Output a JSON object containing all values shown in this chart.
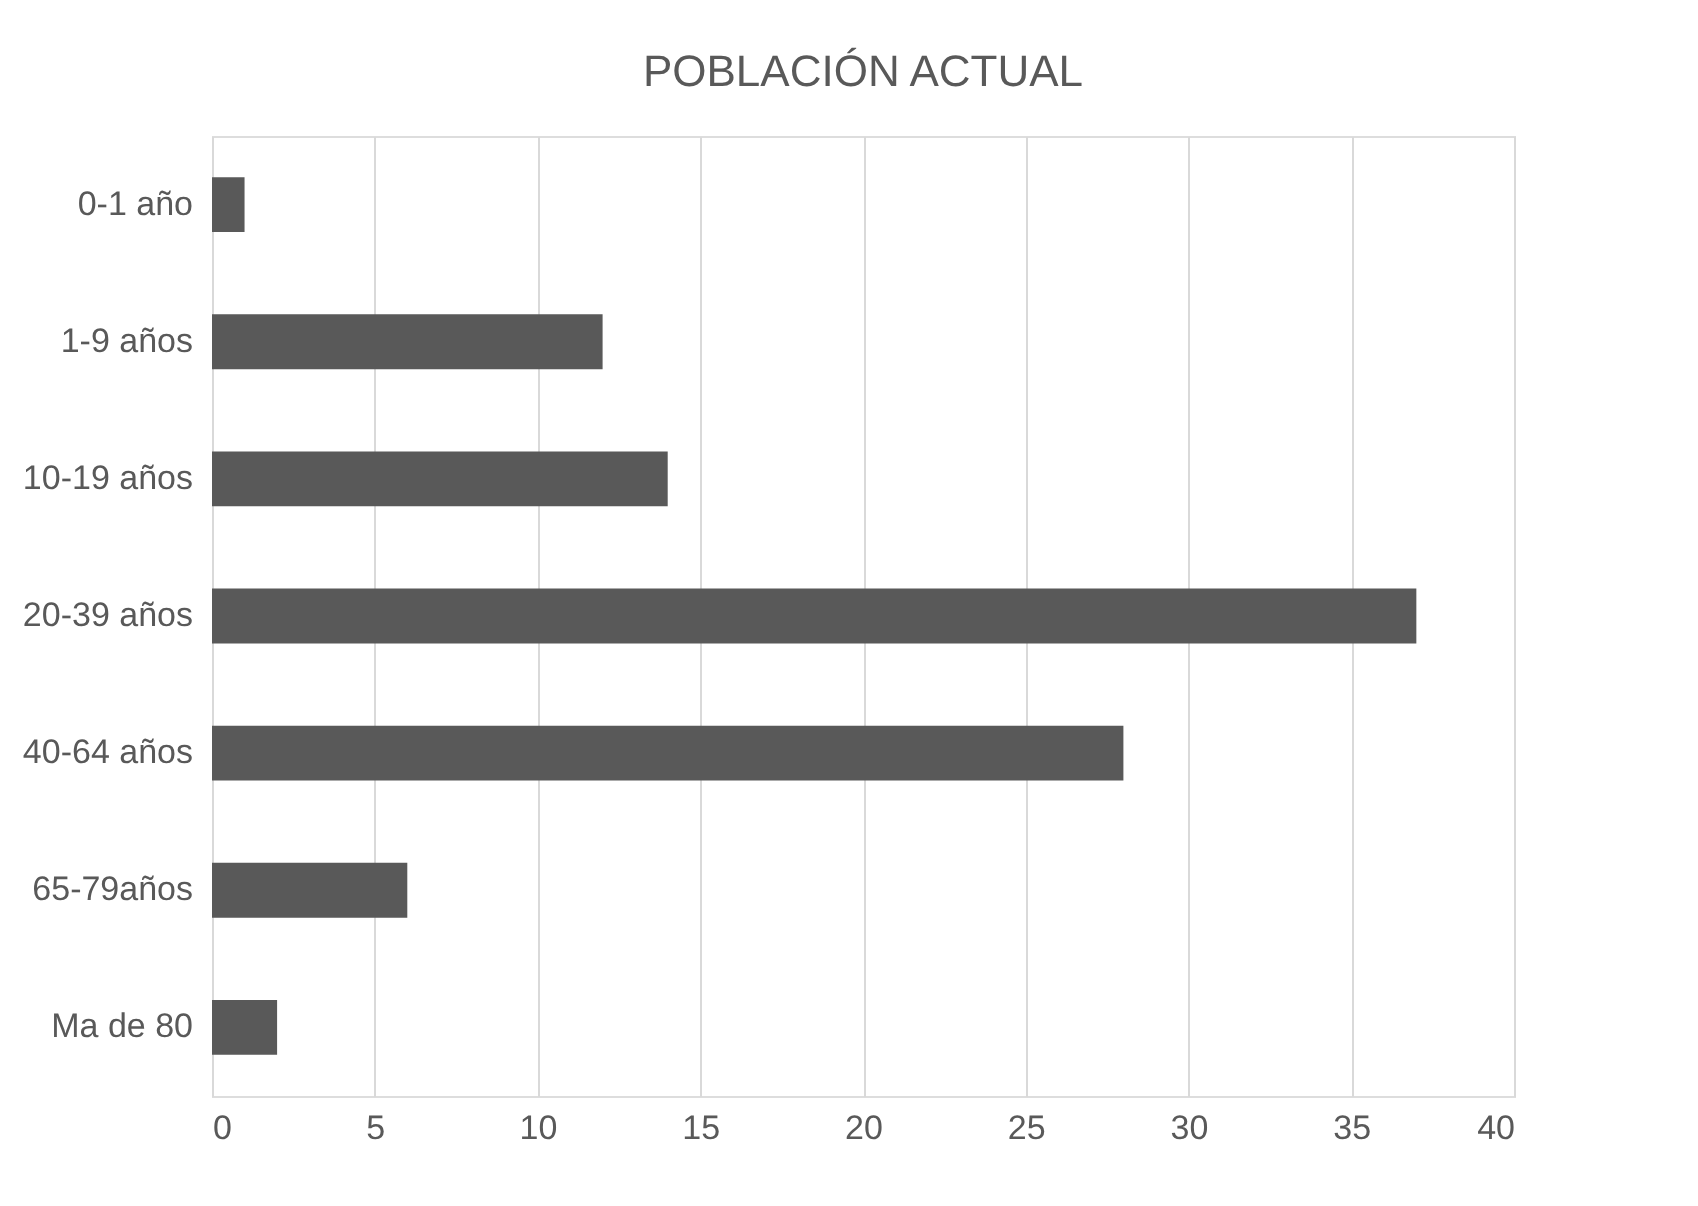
{
  "chart_data": {
    "type": "bar",
    "orientation": "horizontal",
    "title": "POBLACIÓN ACTUAL",
    "categories": [
      "0-1 año",
      "1-9 años",
      "10-19 años",
      "20-39 años",
      "40-64 años",
      "65-79años",
      "Ma de 80"
    ],
    "values": [
      1,
      12,
      14,
      37,
      28,
      6,
      2
    ],
    "color": "#595959",
    "xlim": [
      0,
      40
    ],
    "xticks": [
      0,
      5,
      10,
      15,
      20,
      25,
      30,
      35,
      40
    ],
    "grid": "x"
  }
}
